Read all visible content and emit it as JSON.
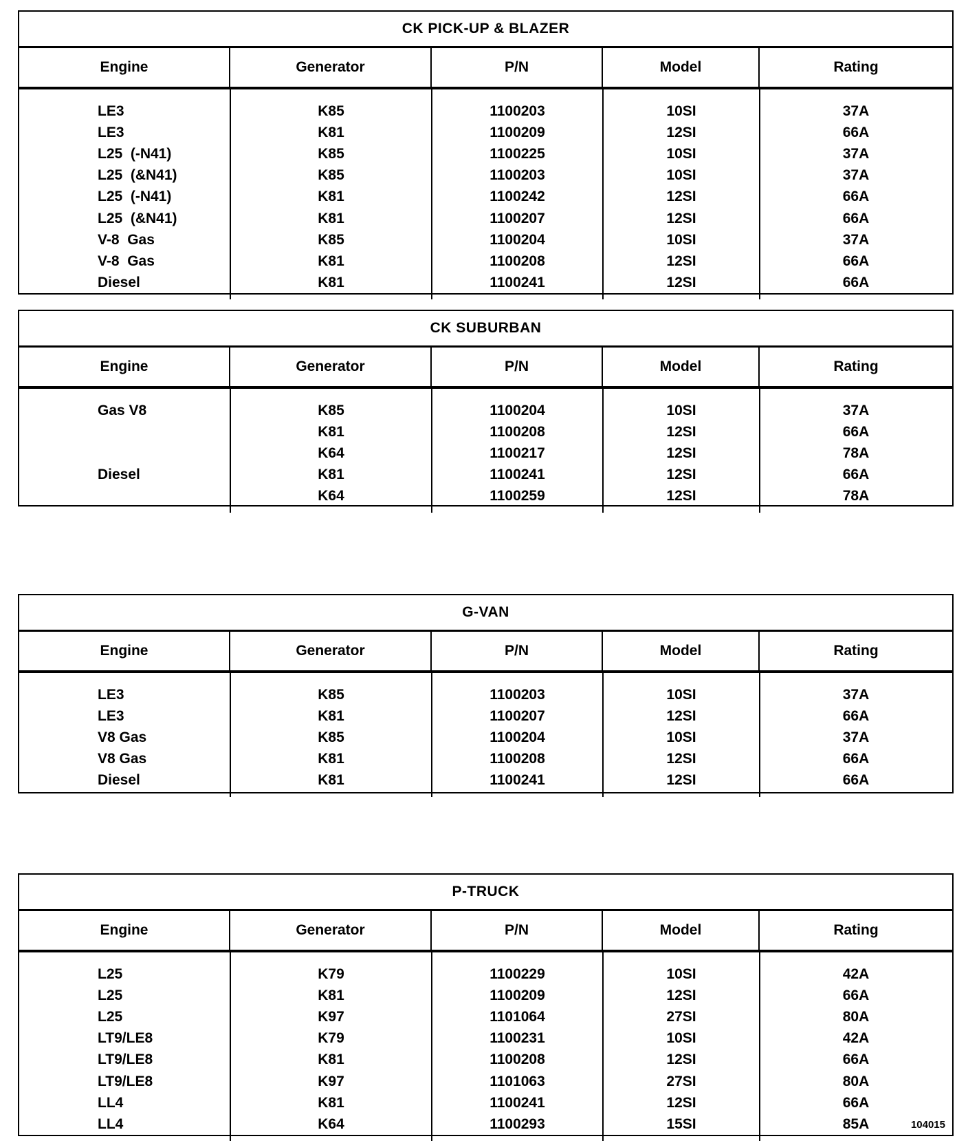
{
  "columns": [
    "Engine",
    "Generator",
    "P/N",
    "Model",
    "Rating"
  ],
  "tables": [
    {
      "title": "CK PICK-UP & BLAZER",
      "rows": [
        [
          "LE3",
          "K85",
          "1100203",
          "10SI",
          "37A"
        ],
        [
          "LE3",
          "K81",
          "1100209",
          "12SI",
          "66A"
        ],
        [
          "L25  (-N41)",
          "K85",
          "1100225",
          "10SI",
          "37A"
        ],
        [
          "L25  (&N41)",
          "K85",
          "1100203",
          "10SI",
          "37A"
        ],
        [
          "L25  (-N41)",
          "K81",
          "1100242",
          "12SI",
          "66A"
        ],
        [
          "L25  (&N41)",
          "K81",
          "1100207",
          "12SI",
          "66A"
        ],
        [
          "V-8  Gas",
          "K85",
          "1100204",
          "10SI",
          "37A"
        ],
        [
          "V-8  Gas",
          "K81",
          "1100208",
          "12SI",
          "66A"
        ],
        [
          "Diesel",
          "K81",
          "1100241",
          "12SI",
          "66A"
        ]
      ]
    },
    {
      "title": "CK  SUBURBAN",
      "rows": [
        [
          "Gas V8",
          "K85",
          "1100204",
          "10SI",
          "37A"
        ],
        [
          "",
          "K81",
          "1100208",
          "12SI",
          "66A"
        ],
        [
          "",
          "K64",
          "1100217",
          "12SI",
          "78A"
        ],
        [
          "Diesel",
          "K81",
          "1100241",
          "12SI",
          "66A"
        ],
        [
          "",
          "K64",
          "1100259",
          "12SI",
          "78A"
        ]
      ]
    },
    {
      "title": "G-VAN",
      "rows": [
        [
          "LE3",
          "K85",
          "1100203",
          "10SI",
          "37A"
        ],
        [
          "LE3",
          "K81",
          "1100207",
          "12SI",
          "66A"
        ],
        [
          "V8 Gas",
          "K85",
          "1100204",
          "10SI",
          "37A"
        ],
        [
          "V8 Gas",
          "K81",
          "1100208",
          "12SI",
          "66A"
        ],
        [
          "Diesel",
          "K81",
          "1100241",
          "12SI",
          "66A"
        ]
      ]
    },
    {
      "title": "P-TRUCK",
      "rows": [
        [
          "L25",
          "K79",
          "1100229",
          "10SI",
          "42A"
        ],
        [
          "L25",
          "K81",
          "1100209",
          "12SI",
          "66A"
        ],
        [
          "L25",
          "K97",
          "1101064",
          "27SI",
          "80A"
        ],
        [
          "LT9/LE8",
          "K79",
          "1100231",
          "10SI",
          "42A"
        ],
        [
          "LT9/LE8",
          "K81",
          "1100208",
          "12SI",
          "66A"
        ],
        [
          "LT9/LE8",
          "K97",
          "1101063",
          "27SI",
          "80A"
        ],
        [
          "LL4",
          "K81",
          "1100241",
          "12SI",
          "66A"
        ],
        [
          "LL4",
          "K64",
          "1100293",
          "15SI",
          "85A"
        ]
      ],
      "footer_code": "104015"
    }
  ]
}
